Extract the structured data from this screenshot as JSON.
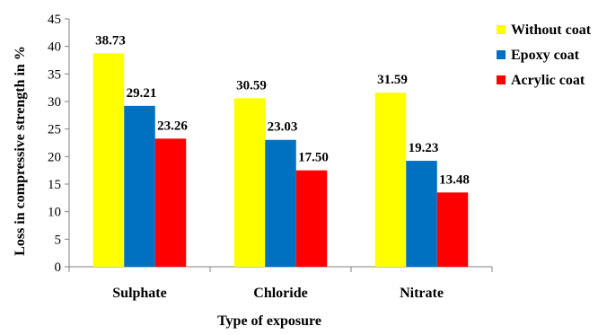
{
  "chart_data": {
    "type": "bar",
    "categories": [
      "Sulphate",
      "Chloride",
      "Nitrate"
    ],
    "series": [
      {
        "name": "Without coat",
        "values": [
          38.73,
          30.59,
          31.59
        ],
        "color": "#ffff00"
      },
      {
        "name": "Epoxy coat",
        "values": [
          29.21,
          23.03,
          19.23
        ],
        "color": "#0070c0"
      },
      {
        "name": "Acrylic coat",
        "values": [
          23.26,
          17.5,
          13.48
        ],
        "color": "#ff0000"
      }
    ],
    "data_labels": [
      [
        "38.73",
        "29.21",
        "23.26"
      ],
      [
        "30.59",
        "23.03",
        "17.50"
      ],
      [
        "31.59",
        "19.23",
        "13.48"
      ]
    ],
    "title": "",
    "xlabel": "Type of exposure",
    "ylabel": "Loss in compressive strength in %",
    "ylim": [
      0,
      45
    ],
    "yticks": [
      "0",
      "5",
      "10",
      "15",
      "20",
      "25",
      "30",
      "35",
      "40",
      "45"
    ],
    "grid": false,
    "legend_position": "right"
  }
}
